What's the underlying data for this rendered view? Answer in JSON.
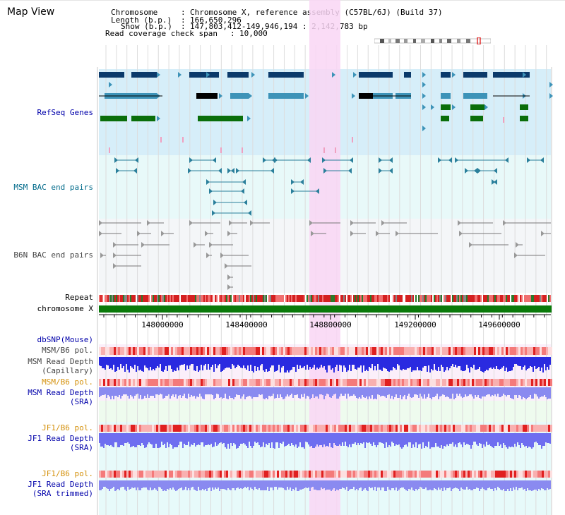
{
  "app": {
    "title": "Map View"
  },
  "info": {
    "chromosome_key": "Chromosome",
    "chromosome_value": "Chromosome X, reference assembly (C57BL/6J) (Build 37)",
    "length_key": "Length (b.p.)",
    "length_value": "166,650,296",
    "show_key": "Show (b.p.)",
    "show_value": "147,803,412-149,946,194 : 2,142,783 bp",
    "coverage_key": "Read coverage check span",
    "coverage_value": "10,000"
  },
  "tracks": {
    "refseq": "RefSeq Genes",
    "msm_bac": "MSM BAC end pairs",
    "b6n_bac": "B6N BAC end pairs",
    "repeat": "Repeat",
    "chromosome": "chromosome X",
    "dbsnp": "dbSNP(Mouse)",
    "msm_b6_pol_1": "MSM/B6 pol.",
    "msm_read_depth_cap_1": "MSM Read Depth",
    "msm_read_depth_cap_2": "(Capillary)",
    "msm_b6_pol_2": "MSM/B6 pol.",
    "msm_read_depth_sra_1": "MSM Read Depth",
    "msm_read_depth_sra_2": "(SRA)",
    "jf1_b6_pol_1": "JF1/B6 pol.",
    "jf1_read_depth_sra_1": "JF1 Read Depth",
    "jf1_read_depth_sra_2": "(SRA)",
    "jf1_b6_pol_2": "JF1/B6 pol.",
    "jf1_read_depth_trim_1": "JF1 Read Depth",
    "jf1_read_depth_trim_2": "(SRA trimmed)"
  },
  "axis": {
    "ticks": [
      "148000000",
      "148400000",
      "148800000",
      "149200000",
      "149600000"
    ]
  },
  "colors": {
    "highlight": "#f9d6f4",
    "refseq_bg": "#d6eef9",
    "msm_bac_bg": "#e8f9f9",
    "b6n_bac_bg": "#f4f6f8",
    "chromosome": "#0a7a0a",
    "gene_navy": "#0b3a6b",
    "gene_teal": "#3d93b8",
    "gene_green": "#0a6e0a",
    "bac_teal": "#2a7f9b",
    "bac_gray": "#777777",
    "depth_blue": "#2a2ae0",
    "depth_light": "#8a8af0"
  }
}
